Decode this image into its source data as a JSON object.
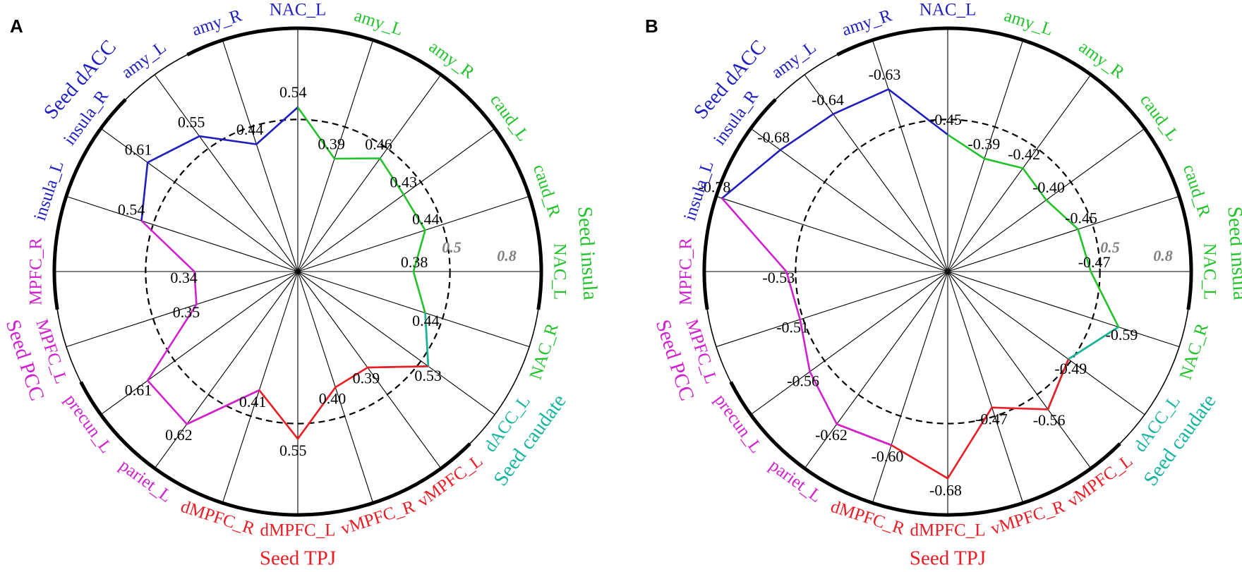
{
  "colors": {
    "dACC": "#1f1fc0",
    "insula": "#22c32a",
    "caudate": "#18b4a0",
    "TPJ": "#ec1c24",
    "PCC": "#d020d0",
    "axis": "#000000",
    "ref_label": "#808080"
  },
  "chart_data": [
    {
      "type": "radar",
      "panel": "A",
      "rmax": 0.8,
      "ref_circle": 0.5,
      "ref_labels": [
        "0.5",
        "0.8"
      ],
      "grid": true,
      "direction": "clockwise, starting at top",
      "spokes": [
        "NAC_L",
        "amy_L",
        "amy_R",
        "caud_L",
        "caud_R",
        "NAC_L",
        "NAC_R",
        "dACC_L",
        "vMPFC_L",
        "vMPFC_R",
        "dMPFC_L",
        "dMPFC_R",
        "pariet_L",
        "precun_L",
        "MPFC_L",
        "MPFC_R",
        "insula_L",
        "insula_R",
        "amy_L",
        "amy_R"
      ],
      "spoke_colors": [
        "dACC",
        "insula",
        "insula",
        "insula",
        "insula",
        "insula",
        "insula",
        "caudate",
        "TPJ",
        "TPJ",
        "TPJ",
        "TPJ",
        "PCC",
        "PCC",
        "PCC",
        "PCC",
        "dACC",
        "dACC",
        "dACC",
        "dACC"
      ],
      "seeds": [
        {
          "name": "Seed dACC",
          "color": "dACC",
          "segments": [
            [
              16,
              0
            ]
          ]
        },
        {
          "name": "Seed insula",
          "color": "insula",
          "segments": [
            [
              0,
              7
            ]
          ]
        },
        {
          "name": "Seed caudate",
          "color": "caudate",
          "segments": [
            [
              6,
              8
            ]
          ]
        },
        {
          "name": "Seed TPJ",
          "color": "TPJ",
          "segments": [
            [
              7,
              12
            ]
          ]
        },
        {
          "name": "Seed PCC",
          "color": "PCC",
          "segments": [
            [
              11,
              16
            ]
          ]
        }
      ],
      "values": [
        0.54,
        0.39,
        0.46,
        0.43,
        0.44,
        0.38,
        0.44,
        0.53,
        0.39,
        0.4,
        0.55,
        0.41,
        0.62,
        0.61,
        0.35,
        0.34,
        0.54,
        0.61,
        0.55,
        0.44
      ],
      "value_labels": [
        "0.54",
        "0.39",
        "0.46",
        "0.43",
        "0.44",
        "0.38",
        "0.44",
        "0.53",
        "0.39",
        "0.40",
        "0.55",
        "0.41",
        "0.62",
        "0.61",
        "0.35",
        "0.34",
        "0.54",
        "0.61",
        "0.55",
        "0.44"
      ]
    },
    {
      "type": "radar",
      "panel": "B",
      "rmax": 0.8,
      "ref_circle": 0.5,
      "ref_labels": [
        "0.5",
        "0.8"
      ],
      "grid": true,
      "direction": "clockwise, starting at top",
      "spokes": [
        "NAC_L",
        "amy_L",
        "amy_R",
        "caud_L",
        "caud_R",
        "NAC_L",
        "NAC_R",
        "dACC_L",
        "vMPFC_L",
        "vMPFC_R",
        "dMPFC_L",
        "dMPFC_R",
        "pariet_L",
        "precun_L",
        "MPFC_L",
        "MPFC_R",
        "insula_L",
        "insula_R",
        "amy_L",
        "amy_R"
      ],
      "spoke_colors": [
        "dACC",
        "insula",
        "insula",
        "insula",
        "insula",
        "insula",
        "insula",
        "caudate",
        "TPJ",
        "TPJ",
        "TPJ",
        "TPJ",
        "PCC",
        "PCC",
        "PCC",
        "PCC",
        "dACC",
        "dACC",
        "dACC",
        "dACC"
      ],
      "seeds": [
        {
          "name": "Seed dACC",
          "color": "dACC",
          "segments": [
            [
              16,
              0
            ]
          ]
        },
        {
          "name": "Seed insula",
          "color": "insula",
          "segments": [
            [
              0,
              7
            ]
          ]
        },
        {
          "name": "Seed caudate",
          "color": "caudate",
          "segments": [
            [
              6,
              8
            ]
          ]
        },
        {
          "name": "Seed TPJ",
          "color": "TPJ",
          "segments": [
            [
              7,
              12
            ]
          ]
        },
        {
          "name": "Seed PCC",
          "color": "PCC",
          "segments": [
            [
              11,
              16
            ]
          ]
        }
      ],
      "values": [
        -0.45,
        -0.39,
        -0.42,
        -0.4,
        -0.45,
        -0.47,
        -0.59,
        -0.49,
        -0.56,
        -0.47,
        -0.68,
        -0.6,
        -0.62,
        -0.56,
        -0.51,
        -0.53,
        -0.78,
        -0.68,
        -0.64,
        -0.63
      ],
      "value_labels": [
        "-0.45",
        "-0.39",
        "-0.42",
        "-0.40",
        "-0.45",
        "-0.47",
        "-0.59",
        "-0.49",
        "-0.56",
        "-0.47",
        "-0.68",
        "-0.60",
        "-0.62",
        "-0.56",
        "-0.51",
        "-0.53",
        "-0.78",
        "-0.68",
        "-0.64",
        "-0.63"
      ]
    }
  ]
}
